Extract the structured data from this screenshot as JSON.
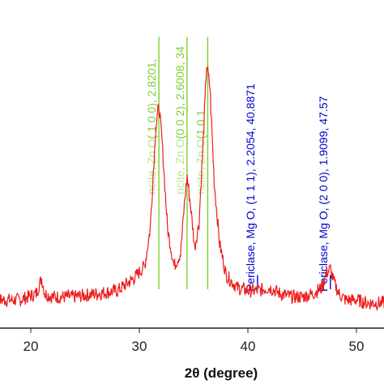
{
  "chart_data": {
    "type": "line",
    "title": "",
    "xlabel": "2θ (degree)",
    "ylabel": "",
    "xlim": [
      15,
      53
    ],
    "ylim": [
      0,
      100
    ],
    "grid": false,
    "xticks": [
      20,
      30,
      40,
      50
    ],
    "xtick_labels": [
      "20",
      "30",
      "40",
      "50"
    ],
    "series": [
      {
        "color": "#ee1c1c",
        "x": [
          15,
          17,
          19,
          20.5,
          21,
          21.3,
          22,
          24,
          26,
          28,
          29.5,
          30.5,
          31,
          31.5,
          31.8,
          32.1,
          32.6,
          33.2,
          33.8,
          34.2,
          34.4,
          34.7,
          35.1,
          35.5,
          35.9,
          36.2,
          36.5,
          36.9,
          37.4,
          38,
          39,
          40,
          41,
          42,
          43,
          44,
          45,
          46,
          46.8,
          47.3,
          47.6,
          47.9,
          48.4,
          49,
          50,
          51,
          52,
          53
        ],
        "y": [
          6,
          7,
          7,
          9,
          14,
          9,
          8,
          8,
          9,
          10,
          14,
          18,
          30,
          62,
          70,
          58,
          30,
          18,
          22,
          40,
          47,
          38,
          24,
          32,
          60,
          83,
          76,
          45,
          25,
          15,
          11,
          10,
          10,
          11,
          9,
          8,
          8,
          9,
          11,
          16,
          17,
          13,
          9,
          7,
          7,
          6,
          6,
          6
        ]
      }
    ],
    "reference_lines": {
      "color_green": "#7ccf2c",
      "color_blue": "#0000cc",
      "positions": [
        31.8,
        34.4,
        36.3,
        40.8871,
        47.6
      ],
      "heights": [
        92,
        92,
        92,
        15,
        15
      ]
    },
    "annotations": [
      {
        "x": 31.8,
        "text_green": "( 1 0 0), 2.8201, ",
        "text_blue": "",
        "text_dim": "ncite, Zn O"
      },
      {
        "x": 34.4,
        "text_green": "(0 0 2), 2.6008, 34",
        "text_blue": "",
        "text_dim": "ncite, Zn O"
      },
      {
        "x": 36.3,
        "text_green": "(1 0 1",
        "text_blue": "",
        "text_dim": "ncite, Zn O"
      },
      {
        "x": 40.8871,
        "text_green": "",
        "text_blue": "Periclase, Mg O, (1 1 1), 2.2054, 40.8871",
        "text_dim": ""
      },
      {
        "x": 47.6,
        "text_green": "",
        "text_blue": "Periclase, Mg O, (2 0 0), 1.9099, 47.57",
        "text_dim": ""
      }
    ]
  }
}
